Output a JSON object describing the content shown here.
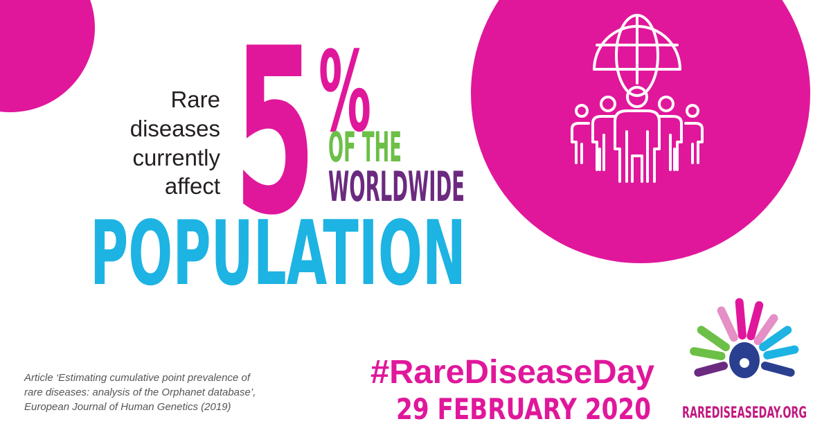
{
  "intro": [
    "Rare",
    "diseases",
    "currently",
    "affect"
  ],
  "figure": {
    "number": "5",
    "symbol": "%"
  },
  "of_the": "OF THE",
  "worldwide": "WORLDWIDE",
  "population": "POPULATION",
  "citation": [
    "Article ‘Estimating cumulative point prevalence of",
    "rare diseases: analysis of the Orphanet database’,",
    "European Journal of Human Genetics (2019)"
  ],
  "hashtag": "#RareDiseaseDay",
  "date": "29 FEBRUARY 2020",
  "logo_text": "RAREDISEASEDAY.ORG"
}
